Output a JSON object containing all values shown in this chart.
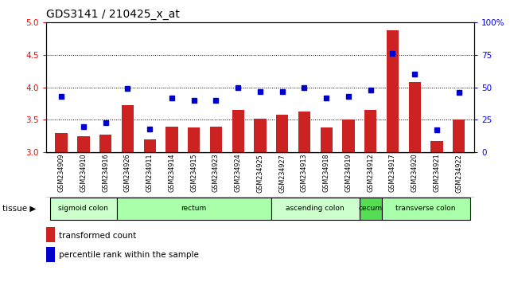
{
  "title": "GDS3141 / 210425_x_at",
  "samples": [
    "GSM234909",
    "GSM234910",
    "GSM234916",
    "GSM234926",
    "GSM234911",
    "GSM234914",
    "GSM234915",
    "GSM234923",
    "GSM234924",
    "GSM234925",
    "GSM234927",
    "GSM234913",
    "GSM234918",
    "GSM234919",
    "GSM234912",
    "GSM234917",
    "GSM234920",
    "GSM234921",
    "GSM234922"
  ],
  "bar_values": [
    3.3,
    3.25,
    3.27,
    3.73,
    3.2,
    3.4,
    3.38,
    3.4,
    3.65,
    3.52,
    3.58,
    3.63,
    3.38,
    3.5,
    3.65,
    4.88,
    4.08,
    3.18,
    3.5
  ],
  "percentile_values": [
    43,
    20,
    23,
    49,
    18,
    42,
    40,
    40,
    50,
    47,
    47,
    50,
    42,
    43,
    48,
    76,
    60,
    17,
    46
  ],
  "ylim_left": [
    3.0,
    5.0
  ],
  "ylim_right": [
    0,
    100
  ],
  "yticks_left": [
    3.0,
    3.5,
    4.0,
    4.5,
    5.0
  ],
  "yticks_right": [
    0,
    25,
    50,
    75,
    100
  ],
  "ytick_labels_right": [
    "0",
    "25",
    "50",
    "75",
    "100%"
  ],
  "hlines": [
    3.5,
    4.0,
    4.5
  ],
  "bar_color": "#cc2222",
  "marker_color": "#0000cc",
  "bar_bottom": 3.0,
  "tissue_data": [
    {
      "label": "sigmoid colon",
      "start": 0,
      "end": 3,
      "color": "#ccffcc"
    },
    {
      "label": "rectum",
      "start": 3,
      "end": 10,
      "color": "#aaffaa"
    },
    {
      "label": "ascending colon",
      "start": 10,
      "end": 14,
      "color": "#ccffcc"
    },
    {
      "label": "cecum",
      "start": 14,
      "end": 15,
      "color": "#55dd55"
    },
    {
      "label": "transverse colon",
      "start": 15,
      "end": 19,
      "color": "#aaffaa"
    }
  ],
  "legend_bar_label": "transformed count",
  "legend_marker_label": "percentile rank within the sample",
  "background_color": "#ffffff",
  "tick_label_area_color": "#cccccc"
}
